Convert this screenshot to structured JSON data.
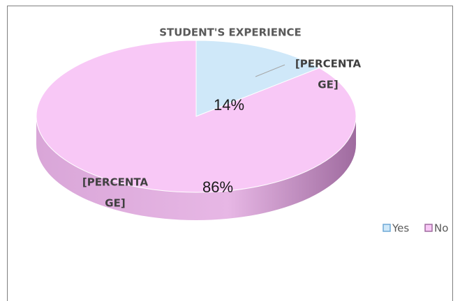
{
  "chart_data": {
    "type": "pie",
    "title": "STUDENT'S EXPERIENCE",
    "categories": [
      "Yes",
      "No"
    ],
    "values": [
      14,
      86
    ],
    "value_labels": [
      "14%",
      "86%"
    ],
    "colors": [
      "#cfe8f9",
      "#f8c8f6"
    ],
    "annotations": [
      [
        "[PERCENTA",
        "GE]"
      ],
      [
        "[PERCENTA",
        "GE]"
      ]
    ],
    "legend": "right"
  }
}
